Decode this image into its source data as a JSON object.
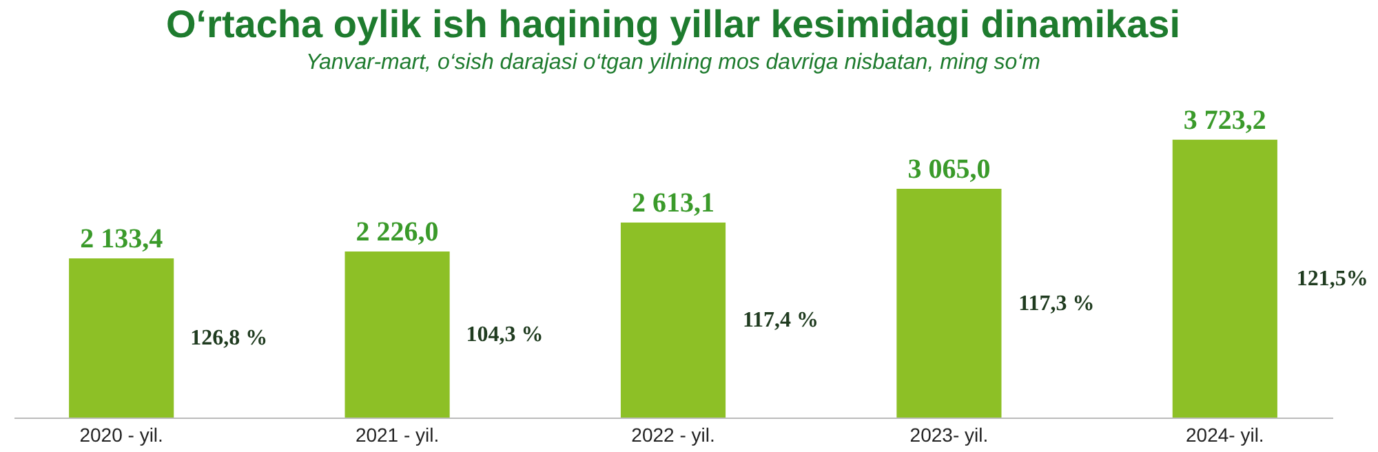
{
  "chart_data": {
    "type": "bar",
    "title": "O‘rtacha oylik ish haqining yillar kesimidagi dinamikasi",
    "subtitle": "Yanvar-mart, o‘sish darajasi o‘tgan yilning mos davriga nisbatan, ming so‘m",
    "categories": [
      "2020 - yil.",
      "2021 - yil.",
      "2022 -  yil.",
      "2023-  yil.",
      "2024-  yil."
    ],
    "values": [
      2133.4,
      2226.0,
      2613.1,
      3065.0,
      3723.2
    ],
    "color": "#8dc026",
    "value_labels": [
      "2 133,4",
      "2 226,0",
      "2 613,1",
      "3 065,0",
      "3 723,2"
    ],
    "annotations": [
      "126,8 %",
      "104,3 %",
      "117,4 %",
      "117,3 %",
      "121,5%"
    ],
    "grid": false
  }
}
